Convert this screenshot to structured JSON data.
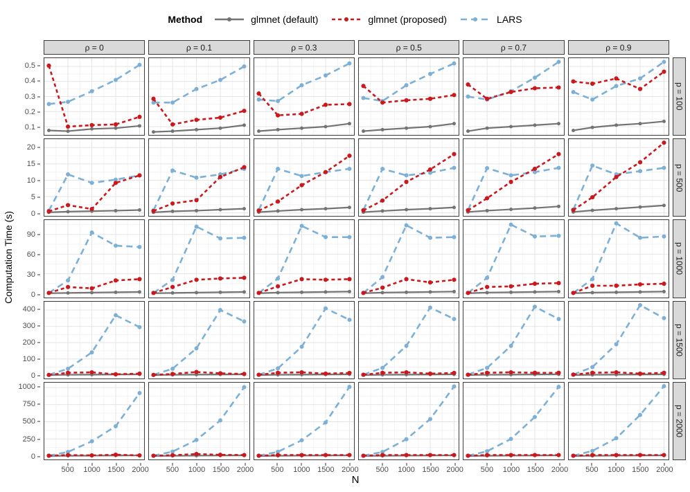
{
  "legend": {
    "title": "Method",
    "items": [
      {
        "label": "glmnet (default)"
      },
      {
        "label": "glmnet (proposed)"
      },
      {
        "label": "LARS"
      }
    ]
  },
  "axes": {
    "x_label": "N",
    "y_label": "Computation Time (s)"
  },
  "chart_data": {
    "type": "line",
    "title": "",
    "x": [
      100,
      500,
      1000,
      1500,
      2000
    ],
    "x_ticks": [
      500,
      1000,
      1500,
      2000
    ],
    "x_minor": [
      250,
      750,
      1250,
      1750
    ],
    "x_domain": [
      5,
      2095
    ],
    "col_facets": [
      "ρ = 0",
      "ρ = 0.1",
      "ρ = 0.3",
      "ρ = 0.5",
      "ρ = 0.7",
      "ρ = 0.9"
    ],
    "row_facets": [
      "p = 100",
      "p = 500",
      "p = 1000",
      "p = 1500",
      "p = 2000"
    ],
    "series_meta": [
      {
        "key": "default",
        "label": "glmnet (default)",
        "color": "#737373",
        "dash": "",
        "width": 2.2,
        "point_r": 2.5
      },
      {
        "key": "lars",
        "label": "LARS",
        "color": "#7cb0d6",
        "dash": "9 6",
        "width": 2.6,
        "point_r": 3.0
      },
      {
        "key": "proposed",
        "label": "glmnet (proposed)",
        "color": "#cb181d",
        "dash": "5 4",
        "width": 2.6,
        "point_r": 3.1
      }
    ],
    "legend_order": [
      "default",
      "proposed",
      "lars"
    ],
    "rows": [
      {
        "facet": "p = 100",
        "y_ticks": [
          0.1,
          0.2,
          0.3,
          0.4,
          0.5
        ],
        "y_minor": [
          0.05,
          0.15,
          0.25,
          0.35,
          0.45,
          0.55
        ],
        "y_domain": [
          0.045,
          0.555
        ],
        "panels": [
          {
            "default": [
              0.075,
              0.07,
              0.085,
              0.09,
              0.105
            ],
            "proposed": [
              0.505,
              0.1,
              0.11,
              0.115,
              0.165
            ],
            "lars": [
              0.25,
              0.265,
              0.335,
              0.41,
              0.51
            ]
          },
          {
            "default": [
              0.065,
              0.07,
              0.08,
              0.09,
              0.11
            ],
            "proposed": [
              0.285,
              0.115,
              0.145,
              0.16,
              0.205
            ],
            "lars": [
              0.26,
              0.26,
              0.35,
              0.41,
              0.5
            ]
          },
          {
            "default": [
              0.07,
              0.08,
              0.09,
              0.1,
              0.12
            ],
            "proposed": [
              0.32,
              0.175,
              0.185,
              0.245,
              0.25
            ],
            "lars": [
              0.28,
              0.27,
              0.375,
              0.44,
              0.52
            ]
          },
          {
            "default": [
              0.07,
              0.08,
              0.09,
              0.1,
              0.12
            ],
            "proposed": [
              0.37,
              0.26,
              0.275,
              0.285,
              0.31
            ],
            "lars": [
              0.29,
              0.27,
              0.375,
              0.45,
              0.52
            ]
          },
          {
            "default": [
              0.07,
              0.09,
              0.1,
              0.11,
              0.12
            ],
            "proposed": [
              0.38,
              0.285,
              0.33,
              0.355,
              0.36
            ],
            "lars": [
              0.3,
              0.28,
              0.335,
              0.425,
              0.53
            ]
          },
          {
            "default": [
              0.075,
              0.095,
              0.11,
              0.12,
              0.135
            ],
            "proposed": [
              0.4,
              0.385,
              0.42,
              0.35,
              0.465
            ],
            "lars": [
              0.33,
              0.28,
              0.37,
              0.42,
              0.53
            ]
          }
        ]
      },
      {
        "facet": "p = 500",
        "y_ticks": [
          0,
          5,
          10,
          15,
          20
        ],
        "y_minor": [
          2.5,
          7.5,
          12.5,
          17.5,
          22.5
        ],
        "y_domain": [
          -0.9,
          22.6
        ],
        "panels": [
          {
            "default": [
              0.2,
              0.4,
              0.55,
              0.7,
              0.9
            ],
            "proposed": [
              0.5,
              2.4,
              1.2,
              9.2,
              11.5
            ],
            "lars": [
              0.7,
              11.8,
              9.2,
              10.2,
              11.5
            ]
          },
          {
            "default": [
              0.2,
              0.5,
              0.7,
              1.0,
              1.3
            ],
            "proposed": [
              0.6,
              2.9,
              3.9,
              11.0,
              14.0
            ],
            "lars": [
              0.8,
              13.0,
              10.8,
              11.8,
              13.5
            ]
          },
          {
            "default": [
              0.25,
              0.6,
              1.0,
              1.3,
              1.7
            ],
            "proposed": [
              0.7,
              3.5,
              8.5,
              12.5,
              17.5
            ],
            "lars": [
              0.9,
              13.5,
              11.3,
              12.5,
              13.5
            ]
          },
          {
            "default": [
              0.25,
              0.6,
              1.0,
              1.3,
              1.7
            ],
            "proposed": [
              0.8,
              3.8,
              9.5,
              13.3,
              18.0
            ],
            "lars": [
              0.9,
              13.5,
              11.5,
              12.3,
              13.8
            ]
          },
          {
            "default": [
              0.3,
              0.7,
              1.1,
              1.5,
              2.0
            ],
            "proposed": [
              0.8,
              4.5,
              9.5,
              13.5,
              18.0
            ],
            "lars": [
              0.9,
              13.7,
              11.5,
              12.5,
              13.8
            ]
          },
          {
            "default": [
              0.3,
              0.8,
              1.3,
              1.8,
              2.3
            ],
            "proposed": [
              0.9,
              4.8,
              11.0,
              15.5,
              21.5
            ],
            "lars": [
              1.0,
              14.5,
              11.8,
              12.8,
              13.8
            ]
          }
        ]
      },
      {
        "facet": "p = 1000",
        "y_ticks": [
          0,
          30,
          60,
          90
        ],
        "y_minor": [
          15,
          45,
          75,
          105
        ],
        "y_domain": [
          -5,
          112
        ],
        "panels": [
          {
            "default": [
              0.5,
              1.0,
              1.5,
              2.0,
              2.5
            ],
            "proposed": [
              1,
              10,
              8,
              20,
              22
            ],
            "lars": [
              1,
              20,
              93,
              73,
              71
            ]
          },
          {
            "default": [
              0.5,
              1.0,
              1.5,
              2.0,
              2.5
            ],
            "proposed": [
              1,
              10,
              21,
              23,
              24
            ],
            "lars": [
              1,
              21,
              102,
              84,
              85
            ]
          },
          {
            "default": [
              0.5,
              1.5,
              2.0,
              2.5,
              3.0
            ],
            "proposed": [
              1,
              11,
              22,
              21,
              22
            ],
            "lars": [
              1,
              23,
              103,
              86,
              86
            ]
          },
          {
            "default": [
              0.5,
              1.5,
              2.0,
              2.5,
              3.0
            ],
            "proposed": [
              1,
              9,
              22,
              17,
              21
            ],
            "lars": [
              1,
              25,
              104,
              85,
              86
            ]
          },
          {
            "default": [
              0.5,
              1.5,
              2.0,
              2.5,
              3.0
            ],
            "proposed": [
              1,
              10,
              11,
              15,
              16
            ],
            "lars": [
              1,
              24,
              105,
              87,
              88
            ]
          },
          {
            "default": [
              0.5,
              1.5,
              2.0,
              2.5,
              3.0
            ],
            "proposed": [
              1,
              12,
              12,
              14,
              15
            ],
            "lars": [
              1,
              22,
              107,
              85,
              87
            ]
          }
        ]
      },
      {
        "facet": "p = 1500",
        "y_ticks": [
          0,
          100,
          200,
          300,
          400
        ],
        "y_minor": [
          50,
          150,
          250,
          350,
          450
        ],
        "y_domain": [
          -20,
          451
        ],
        "panels": [
          {
            "default": [
              1,
              3,
              4,
              5,
              6
            ],
            "proposed": [
              2,
              15,
              18,
              6,
              10
            ],
            "lars": [
              3,
              40,
              140,
              368,
              295
            ]
          },
          {
            "default": [
              1,
              3,
              4,
              5,
              6
            ],
            "proposed": [
              2,
              8,
              20,
              12,
              8
            ],
            "lars": [
              3,
              40,
              165,
              400,
              330
            ]
          },
          {
            "default": [
              1,
              3,
              4,
              5,
              6
            ],
            "proposed": [
              3,
              15,
              18,
              10,
              14
            ],
            "lars": [
              3,
              42,
              175,
              410,
              340
            ]
          },
          {
            "default": [
              1,
              3,
              4,
              5,
              6
            ],
            "proposed": [
              3,
              15,
              18,
              10,
              14
            ],
            "lars": [
              4,
              45,
              180,
              415,
              345
            ]
          },
          {
            "default": [
              1,
              3,
              4,
              5,
              6
            ],
            "proposed": [
              3,
              15,
              18,
              15,
              15
            ],
            "lars": [
              4,
              45,
              180,
              420,
              345
            ]
          },
          {
            "default": [
              1,
              3,
              4,
              5,
              6
            ],
            "proposed": [
              4,
              15,
              18,
              10,
              15
            ],
            "lars": [
              4,
              50,
              190,
              430,
              350
            ]
          }
        ]
      },
      {
        "facet": "p = 2000",
        "y_ticks": [
          0,
          250,
          500,
          750,
          1000
        ],
        "y_minor": [
          125,
          375,
          625,
          875
        ],
        "y_domain": [
          -50,
          1071
        ],
        "panels": [
          {
            "default": [
              1,
              4,
              6,
              8,
              10
            ],
            "proposed": [
              5,
              15,
              10,
              20,
              10
            ],
            "lars": [
              5,
              60,
              215,
              435,
              920
            ]
          },
          {
            "default": [
              1,
              4,
              6,
              8,
              10
            ],
            "proposed": [
              5,
              12,
              30,
              18,
              15
            ],
            "lars": [
              5,
              65,
              235,
              520,
              1005
            ]
          },
          {
            "default": [
              1,
              4,
              6,
              8,
              10
            ],
            "proposed": [
              5,
              15,
              15,
              15,
              15
            ],
            "lars": [
              5,
              62,
              230,
              490,
              1010
            ]
          },
          {
            "default": [
              1,
              4,
              6,
              8,
              10
            ],
            "proposed": [
              5,
              15,
              15,
              15,
              15
            ],
            "lars": [
              5,
              60,
              245,
              540,
              1015
            ]
          },
          {
            "default": [
              1,
              4,
              6,
              8,
              10
            ],
            "proposed": [
              5,
              15,
              15,
              15,
              15
            ],
            "lars": [
              5,
              70,
              250,
              570,
              1010
            ]
          },
          {
            "default": [
              1,
              4,
              6,
              8,
              10
            ],
            "proposed": [
              5,
              15,
              15,
              15,
              15
            ],
            "lars": [
              5,
              75,
              260,
              600,
              1020
            ]
          }
        ]
      }
    ],
    "grid": true,
    "legend_position": "top",
    "colors": {
      "strip_bg": "#d9d9d9",
      "panel_border": "#3b3b3b",
      "grid_major": "#e4e4e4",
      "grid_minor": "#f2f2f2",
      "tick_text": "#4d4d4d"
    }
  }
}
